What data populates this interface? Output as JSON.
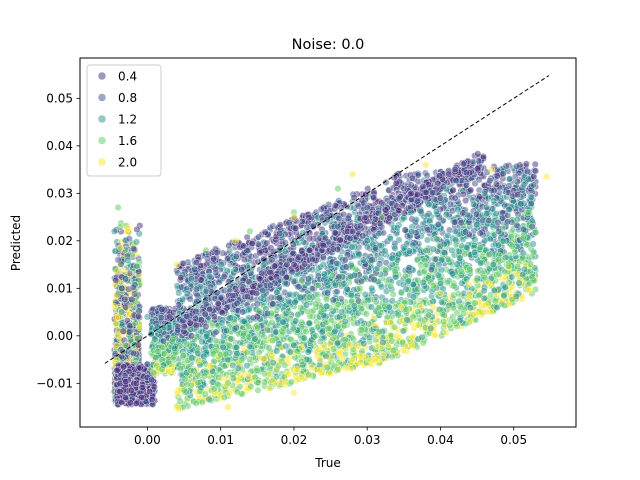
{
  "chart_data": {
    "type": "scatter",
    "title": "Noise: 0.0",
    "xlabel": "True",
    "ylabel": "Predicted",
    "xlim": [
      -0.0092,
      0.0585
    ],
    "ylim": [
      -0.0192,
      0.0585
    ],
    "xticks": [
      0.0,
      0.01,
      0.02,
      0.03,
      0.04,
      0.05
    ],
    "xtick_labels": [
      "0.00",
      "0.01",
      "0.02",
      "0.03",
      "0.04",
      "0.05"
    ],
    "yticks": [
      -0.01,
      0.0,
      0.01,
      0.02,
      0.03,
      0.04,
      0.05
    ],
    "ytick_labels": [
      "−0.01",
      "0.00",
      "0.01",
      "0.02",
      "0.03",
      "0.04",
      "0.05"
    ],
    "legend_position": "upper-left",
    "legend": [
      {
        "label": "0.4",
        "color": "#472d7b"
      },
      {
        "label": "0.8",
        "color": "#3b528b"
      },
      {
        "label": "1.2",
        "color": "#21918c"
      },
      {
        "label": "1.6",
        "color": "#5ec962"
      },
      {
        "label": "2.0",
        "color": "#fde725"
      }
    ],
    "reference_line": {
      "x": [
        -0.0058,
        0.0548
      ],
      "y": [
        -0.0058,
        0.0548
      ],
      "style": "dashed",
      "color": "#000000"
    },
    "marker_alpha": 0.5,
    "series": [
      {
        "hue": 0.4,
        "color": "#472d7b",
        "points": [
          [
            -0.0035,
            -0.014
          ],
          [
            -0.003,
            -0.013
          ],
          [
            -0.0022,
            -0.0115
          ],
          [
            -0.0015,
            -0.01
          ],
          [
            -0.0008,
            -0.013
          ],
          [
            -0.0025,
            -0.0075
          ],
          [
            -0.0035,
            0.01
          ],
          [
            -0.003,
            0.006
          ],
          [
            0.008,
            0.002
          ],
          [
            0.015,
            0.004
          ],
          [
            0.02,
            0.015
          ],
          [
            0.024,
            0.019
          ],
          [
            0.028,
            0.022
          ],
          [
            0.032,
            0.028
          ],
          [
            0.036,
            0.03
          ],
          [
            0.04,
            0.029
          ],
          [
            0.006,
            0.0
          ],
          [
            0.018,
            0.008
          ]
        ]
      },
      {
        "hue": 0.8,
        "color": "#3b528b",
        "points": [
          [
            -0.004,
            0.016
          ],
          [
            -0.003,
            0.012
          ],
          [
            0.0,
            -0.006
          ],
          [
            0.01,
            0.008
          ],
          [
            0.017,
            0.016
          ],
          [
            0.026,
            0.023
          ],
          [
            0.03,
            0.027
          ],
          [
            0.035,
            0.031
          ],
          [
            0.042,
            0.029
          ],
          [
            0.022,
            0.012
          ],
          [
            0.013,
            0.005
          ],
          [
            0.005,
            0.002
          ]
        ]
      },
      {
        "hue": 1.2,
        "color": "#21918c",
        "points": [
          [
            -0.0045,
            0.022
          ],
          [
            -0.0035,
            0.005
          ],
          [
            0.0,
            0.004
          ],
          [
            0.006,
            0.012
          ],
          [
            0.012,
            0.014
          ],
          [
            0.018,
            0.018
          ],
          [
            0.024,
            0.015
          ],
          [
            0.03,
            0.02
          ],
          [
            0.036,
            0.026
          ],
          [
            0.042,
            0.022
          ],
          [
            0.046,
            0.03
          ],
          [
            0.052,
            0.033
          ],
          [
            0.04,
            0.011
          ],
          [
            0.033,
            0.006
          ],
          [
            0.027,
            0.003
          ],
          [
            0.02,
            -0.002
          ]
        ]
      },
      {
        "hue": 1.6,
        "color": "#5ec962",
        "points": [
          [
            -0.004,
            0.027
          ],
          [
            -0.003,
            -0.002
          ],
          [
            0.002,
            -0.007
          ],
          [
            0.008,
            0.018
          ],
          [
            0.014,
            0.022
          ],
          [
            0.02,
            0.026
          ],
          [
            0.026,
            0.031
          ],
          [
            0.032,
            0.025
          ],
          [
            0.038,
            0.018
          ],
          [
            0.044,
            0.014
          ],
          [
            0.048,
            0.013
          ],
          [
            0.052,
            0.026
          ],
          [
            0.01,
            -0.004
          ],
          [
            0.016,
            -0.008
          ],
          [
            0.023,
            0.0
          ],
          [
            0.029,
            0.01
          ]
        ]
      },
      {
        "hue": 2.0,
        "color": "#fde725",
        "points": [
          [
            -0.004,
            0.0
          ],
          [
            0.004,
            -0.015
          ],
          [
            0.011,
            -0.015
          ],
          [
            0.02,
            -0.012
          ],
          [
            0.028,
            -0.005
          ],
          [
            0.034,
            0.0
          ],
          [
            0.039,
            0.006
          ],
          [
            0.044,
            0.008
          ],
          [
            0.004,
            0.015
          ],
          [
            0.012,
            0.02
          ],
          [
            0.02,
            0.025
          ],
          [
            0.028,
            0.034
          ],
          [
            0.038,
            0.036
          ],
          [
            0.047,
            0.035
          ],
          [
            0.0545,
            0.0335
          ],
          [
            0.025,
            -0.008
          ]
        ]
      }
    ]
  }
}
